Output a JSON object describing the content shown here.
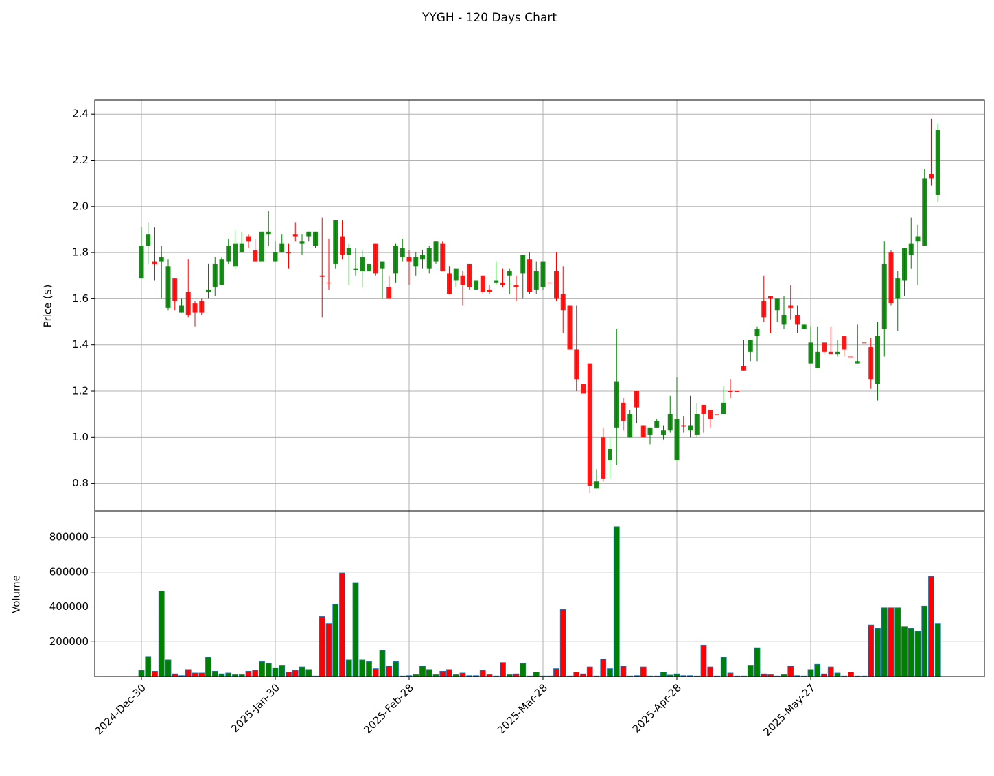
{
  "chart_data": {
    "type": "candlestick",
    "title": "YYGH - 120 Days Chart",
    "price_label": "Price ($)",
    "volume_label": "Volume",
    "up_color": "green",
    "down_color": "red",
    "volume_edge_color": "#1f77b4",
    "grid": true,
    "categories": [
      "2024-Dec-30",
      null,
      null,
      null,
      null,
      null,
      null,
      null,
      null,
      null,
      null,
      null,
      null,
      null,
      null,
      null,
      null,
      null,
      null,
      null,
      "2025-Jan-30",
      null,
      null,
      null,
      null,
      null,
      null,
      null,
      null,
      null,
      null,
      null,
      null,
      null,
      null,
      null,
      null,
      null,
      null,
      null,
      "2025-Feb-28",
      null,
      null,
      null,
      null,
      null,
      null,
      null,
      null,
      null,
      null,
      null,
      null,
      null,
      null,
      null,
      null,
      null,
      null,
      null,
      "2025-Mar-28",
      null,
      null,
      null,
      null,
      null,
      null,
      null,
      null,
      null,
      null,
      null,
      null,
      null,
      null,
      null,
      null,
      null,
      null,
      null,
      "2025-Apr-28",
      null,
      null,
      null,
      null,
      null,
      null,
      null,
      null,
      null,
      null,
      null,
      null,
      null,
      null,
      null,
      null,
      null,
      null,
      null,
      "2025-May-27",
      null,
      null,
      null,
      null,
      null,
      null,
      null,
      null,
      null,
      null,
      null,
      null,
      null,
      null,
      null,
      null,
      null,
      null,
      null
    ],
    "open": [
      1.69,
      1.83,
      1.76,
      1.76,
      1.56,
      1.69,
      1.54,
      1.63,
      1.58,
      1.59,
      1.63,
      1.65,
      1.66,
      1.76,
      1.74,
      1.8,
      1.87,
      1.81,
      1.76,
      1.88,
      1.76,
      1.8,
      1.8,
      1.88,
      1.84,
      1.87,
      1.83,
      1.7,
      1.67,
      1.75,
      1.87,
      1.79,
      1.725,
      1.72,
      1.72,
      1.84,
      1.73,
      1.65,
      1.71,
      1.78,
      1.78,
      1.74,
      1.77,
      1.73,
      1.76,
      1.84,
      1.71,
      1.68,
      1.7,
      1.75,
      1.64,
      1.7,
      1.64,
      1.67,
      1.67,
      1.7,
      1.66,
      1.71,
      1.77,
      1.64,
      1.65,
      1.67,
      1.72,
      1.62,
      1.57,
      1.38,
      1.23,
      1.32,
      0.78,
      1.0,
      0.9,
      1.04,
      1.15,
      1.0,
      1.2,
      1.05,
      1.01,
      1.04,
      1.01,
      1.03,
      0.9,
      1.05,
      1.03,
      1.01,
      1.14,
      1.12,
      1.1,
      1.1,
      1.2,
      1.2,
      1.31,
      1.37,
      1.44,
      1.59,
      1.61,
      1.55,
      1.49,
      1.57,
      1.53,
      1.47,
      1.32,
      1.3,
      1.41,
      1.37,
      1.36,
      1.44,
      1.35,
      1.32,
      1.41,
      1.39,
      1.23,
      1.47,
      1.8,
      1.6,
      1.68,
      1.79,
      1.85,
      1.83,
      2.14,
      2.05
    ],
    "high": [
      1.91,
      1.93,
      1.91,
      1.83,
      1.77,
      1.69,
      1.6,
      1.77,
      1.59,
      1.6,
      1.75,
      1.78,
      1.78,
      1.86,
      1.9,
      1.89,
      1.88,
      1.86,
      1.98,
      1.98,
      1.85,
      1.88,
      1.84,
      1.93,
      1.88,
      1.89,
      1.89,
      1.95,
      1.86,
      1.94,
      1.94,
      1.84,
      1.82,
      1.81,
      1.85,
      1.84,
      1.76,
      1.7,
      1.84,
      1.86,
      1.81,
      1.8,
      1.81,
      1.83,
      1.85,
      1.85,
      1.74,
      1.73,
      1.72,
      1.75,
      1.72,
      1.7,
      1.66,
      1.76,
      1.73,
      1.73,
      1.7,
      1.79,
      1.8,
      1.76,
      1.76,
      1.67,
      1.8,
      1.74,
      1.57,
      1.57,
      1.24,
      1.32,
      0.86,
      1.04,
      1.0,
      1.47,
      1.17,
      1.12,
      1.2,
      1.05,
      1.04,
      1.08,
      1.05,
      1.18,
      1.26,
      1.09,
      1.18,
      1.15,
      1.14,
      1.12,
      1.1,
      1.22,
      1.25,
      1.2,
      1.42,
      1.42,
      1.48,
      1.7,
      1.61,
      1.6,
      1.61,
      1.66,
      1.57,
      1.49,
      1.48,
      1.48,
      1.41,
      1.48,
      1.42,
      1.44,
      1.36,
      1.49,
      1.41,
      1.43,
      1.5,
      1.85,
      1.81,
      1.72,
      1.82,
      1.95,
      1.92,
      2.16,
      2.38,
      2.36
    ],
    "low": [
      1.69,
      1.75,
      1.68,
      1.6,
      1.55,
      1.55,
      1.54,
      1.52,
      1.48,
      1.53,
      1.6,
      1.61,
      1.66,
      1.75,
      1.73,
      1.8,
      1.82,
      1.76,
      1.76,
      1.83,
      1.76,
      1.8,
      1.73,
      1.85,
      1.79,
      1.85,
      1.82,
      1.52,
      1.64,
      1.73,
      1.77,
      1.66,
      1.7,
      1.65,
      1.7,
      1.7,
      1.6,
      1.6,
      1.67,
      1.76,
      1.66,
      1.7,
      1.73,
      1.71,
      1.75,
      1.72,
      1.62,
      1.65,
      1.57,
      1.64,
      1.64,
      1.62,
      1.62,
      1.66,
      1.65,
      1.62,
      1.59,
      1.6,
      1.62,
      1.62,
      1.64,
      1.67,
      1.59,
      1.45,
      1.38,
      1.2,
      1.08,
      0.76,
      0.78,
      0.81,
      0.82,
      0.88,
      1.03,
      1.0,
      1.06,
      1.0,
      0.97,
      1.04,
      0.99,
      1.02,
      0.9,
      1.02,
      1.0,
      1.0,
      1.02,
      1.04,
      1.1,
      1.1,
      1.17,
      1.2,
      1.29,
      1.33,
      1.33,
      1.5,
      1.45,
      1.5,
      1.47,
      1.51,
      1.45,
      1.47,
      1.32,
      1.3,
      1.36,
      1.36,
      1.35,
      1.35,
      1.34,
      1.32,
      1.41,
      1.21,
      1.16,
      1.35,
      1.57,
      1.46,
      1.61,
      1.73,
      1.66,
      1.83,
      2.09,
      2.02
    ],
    "close": [
      1.83,
      1.88,
      1.75,
      1.78,
      1.74,
      1.59,
      1.57,
      1.53,
      1.54,
      1.54,
      1.64,
      1.75,
      1.77,
      1.83,
      1.84,
      1.84,
      1.85,
      1.76,
      1.89,
      1.89,
      1.8,
      1.84,
      1.8,
      1.87,
      1.85,
      1.89,
      1.89,
      1.7,
      1.67,
      1.94,
      1.79,
      1.82,
      1.73,
      1.78,
      1.75,
      1.71,
      1.76,
      1.6,
      1.83,
      1.82,
      1.76,
      1.78,
      1.79,
      1.82,
      1.85,
      1.72,
      1.62,
      1.73,
      1.66,
      1.65,
      1.68,
      1.63,
      1.63,
      1.68,
      1.66,
      1.72,
      1.65,
      1.79,
      1.63,
      1.72,
      1.76,
      1.67,
      1.6,
      1.55,
      1.38,
      1.25,
      1.19,
      0.79,
      0.81,
      0.82,
      0.95,
      1.24,
      1.07,
      1.1,
      1.13,
      1.0,
      1.04,
      1.07,
      1.03,
      1.1,
      1.08,
      1.05,
      1.05,
      1.1,
      1.1,
      1.08,
      1.1,
      1.15,
      1.2,
      1.2,
      1.29,
      1.42,
      1.47,
      1.52,
      1.6,
      1.6,
      1.53,
      1.56,
      1.49,
      1.49,
      1.41,
      1.37,
      1.37,
      1.36,
      1.37,
      1.38,
      1.345,
      1.33,
      1.41,
      1.25,
      1.44,
      1.75,
      1.58,
      1.69,
      1.82,
      1.84,
      1.87,
      2.12,
      2.12,
      2.33
    ],
    "volume": [
      35000,
      115000,
      30000,
      490000,
      95000,
      15000,
      5000,
      40000,
      20000,
      20000,
      110000,
      30000,
      15000,
      20000,
      10000,
      10000,
      30000,
      35000,
      85000,
      75000,
      50000,
      65000,
      25000,
      35000,
      55000,
      40000,
      3000,
      345000,
      305000,
      415000,
      595000,
      95000,
      540000,
      95000,
      85000,
      45000,
      150000,
      60000,
      85000,
      3000,
      5000,
      10000,
      60000,
      40000,
      10000,
      30000,
      40000,
      10000,
      20000,
      5000,
      5000,
      35000,
      10000,
      3000,
      80000,
      10000,
      15000,
      75000,
      3000,
      25000,
      3000,
      3000,
      45000,
      385000,
      3000,
      25000,
      15000,
      55000,
      3000,
      100000,
      45000,
      860000,
      60000,
      3000,
      5000,
      55000,
      3000,
      3000,
      25000,
      8000,
      15000,
      5000,
      5000,
      3000,
      180000,
      55000,
      3000,
      110000,
      20000,
      3000,
      3000,
      65000,
      165000,
      15000,
      10000,
      3000,
      10000,
      60000,
      5000,
      3000,
      40000,
      70000,
      15000,
      55000,
      20000,
      3000,
      25000,
      3000,
      3000,
      295000,
      275000,
      395000,
      395000,
      395000,
      285000,
      275000,
      260000,
      405000,
      575000,
      305000
    ],
    "ylim": [
      0.68,
      2.46
    ],
    "yticks": [
      0.8,
      {
        "value": 1.0,
        "label": "1.0"
      },
      1.2,
      1.4,
      1.6,
      1.8,
      {
        "value": 2.0,
        "label": "2.0"
      },
      2.2,
      2.4
    ],
    "volume_ylim": [
      0,
      950000
    ],
    "volume_yticks": [
      200000,
      400000,
      600000,
      800000
    ]
  }
}
